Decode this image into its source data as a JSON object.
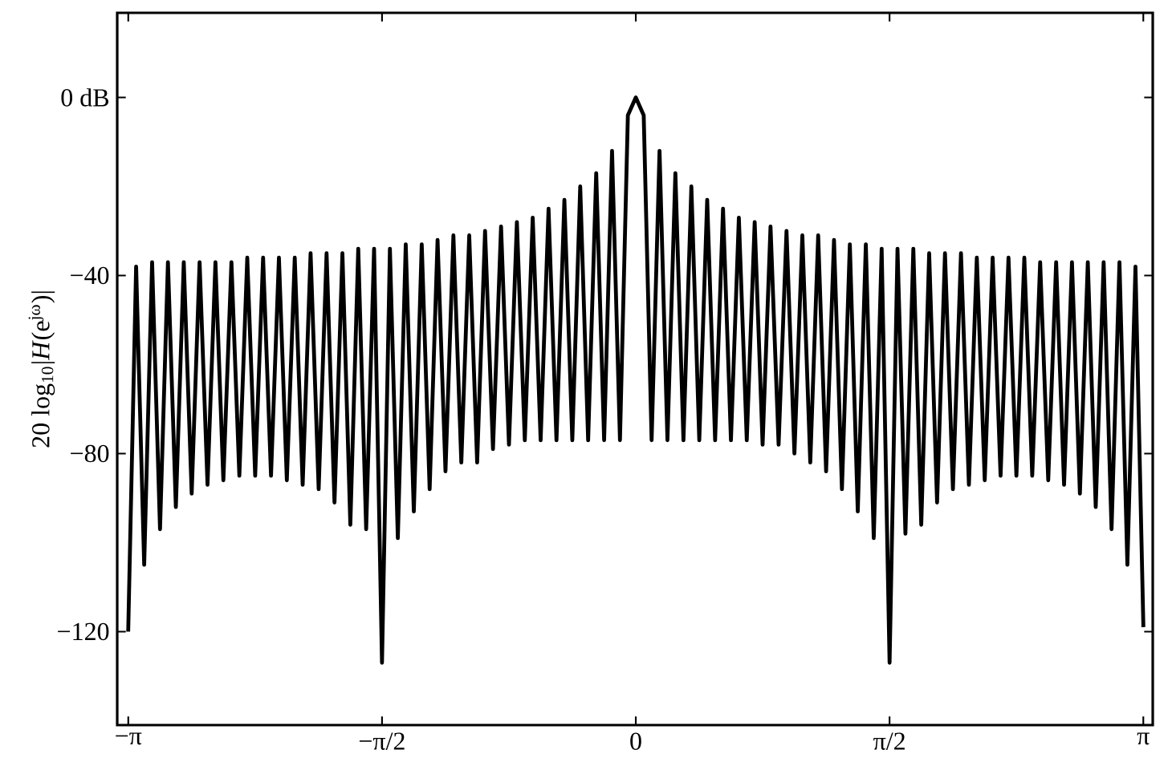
{
  "chart_data": {
    "type": "line",
    "ylabel": "20 log$_{10}$|*H*(e$^{jω}$)|",
    "xlim": [
      -3.21,
      3.2
    ],
    "ylim": [
      -141,
      19
    ],
    "xticks": [
      {
        "value": -3.14159,
        "label": "−π"
      },
      {
        "value": -1.5708,
        "label": "−π/2"
      },
      0,
      {
        "value": 1.5708,
        "label": "π/2"
      },
      {
        "value": 3.14159,
        "label": "π"
      }
    ],
    "yticks": [
      {
        "value": -120,
        "label": "−120"
      },
      {
        "value": -80,
        "label": "−80"
      },
      {
        "value": -40,
        "label": "−40"
      },
      {
        "value": 0,
        "label": "0 dB"
      }
    ],
    "grid": false,
    "marker": "none",
    "line_style": "solid",
    "series": [
      {
        "color": "#000000",
        "x": [
          -3.142,
          -3.093,
          -3.043,
          -2.994,
          -2.945,
          -2.896,
          -2.847,
          -2.798,
          -2.749,
          -2.7,
          -2.651,
          -2.602,
          -2.553,
          -2.503,
          -2.454,
          -2.405,
          -2.356,
          -2.307,
          -2.258,
          -2.209,
          -2.16,
          -2.111,
          -2.062,
          -2.013,
          -1.963,
          -1.914,
          -1.865,
          -1.816,
          -1.767,
          -1.718,
          -1.669,
          -1.62,
          -1.571,
          -1.522,
          -1.473,
          -1.424,
          -1.374,
          -1.325,
          -1.276,
          -1.227,
          -1.178,
          -1.129,
          -1.08,
          -1.031,
          -0.982,
          -0.933,
          -0.884,
          -0.834,
          -0.785,
          -0.736,
          -0.687,
          -0.638,
          -0.589,
          -0.54,
          -0.491,
          -0.442,
          -0.393,
          -0.344,
          -0.295,
          -0.245,
          -0.196,
          -0.147,
          -0.098,
          -0.049,
          0,
          0.049,
          0.098,
          0.147,
          0.196,
          0.245,
          0.295,
          0.344,
          0.393,
          0.442,
          0.491,
          0.54,
          0.589,
          0.638,
          0.687,
          0.736,
          0.785,
          0.834,
          0.884,
          0.933,
          0.982,
          1.031,
          1.08,
          1.129,
          1.178,
          1.227,
          1.276,
          1.325,
          1.374,
          1.424,
          1.473,
          1.522,
          1.571,
          1.62,
          1.669,
          1.718,
          1.767,
          1.816,
          1.865,
          1.914,
          1.963,
          2.013,
          2.062,
          2.111,
          2.16,
          2.209,
          2.258,
          2.307,
          2.356,
          2.405,
          2.454,
          2.503,
          2.553,
          2.602,
          2.651,
          2.7,
          2.749,
          2.798,
          2.847,
          2.896,
          2.945,
          2.994,
          3.043,
          3.093,
          3.142
        ],
        "values": [
          -120,
          -38,
          -105,
          -37,
          -97,
          -37,
          -92,
          -37,
          -89,
          -37,
          -87,
          -37,
          -86,
          -37,
          -85,
          -36,
          -85,
          -36,
          -85,
          -36,
          -86,
          -36,
          -87,
          -35,
          -88,
          -35,
          -91,
          -35,
          -96,
          -34,
          -97,
          -34,
          -127,
          -34,
          -99,
          -33,
          -93,
          -33,
          -88,
          -32,
          -84,
          -31,
          -82,
          -31,
          -82,
          -30,
          -79,
          -29,
          -78,
          -28,
          -77,
          -27,
          -77,
          -25,
          -77,
          -23,
          -77,
          -20,
          -77,
          -17,
          -77,
          -12,
          -77,
          -4,
          0,
          -4,
          -77,
          -12,
          -77,
          -17,
          -77,
          -20,
          -77,
          -23,
          -77,
          -25,
          -77,
          -27,
          -77,
          -28,
          -78,
          -29,
          -78,
          -30,
          -80,
          -31,
          -82,
          -31,
          -84,
          -32,
          -88,
          -33,
          -93,
          -33,
          -99,
          -34,
          -127,
          -34,
          -98,
          -34,
          -96,
          -35,
          -91,
          -35,
          -88,
          -35,
          -87,
          -36,
          -86,
          -36,
          -85,
          -36,
          -85,
          -36,
          -85,
          -37,
          -86,
          -37,
          -87,
          -37,
          -89,
          -37,
          -92,
          -37,
          -97,
          -37,
          -105,
          -38,
          -119
        ]
      }
    ]
  }
}
